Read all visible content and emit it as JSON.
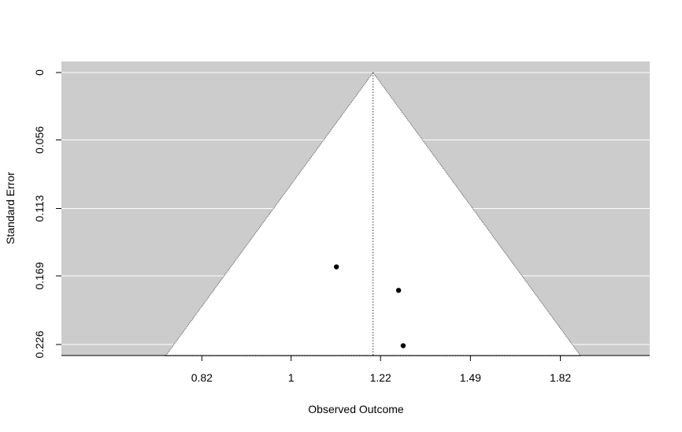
{
  "chart_data": {
    "type": "scatter",
    "subtype": "funnel",
    "title": "",
    "xlabel": "Observed Outcome",
    "ylabel": "Standard Error",
    "x_scale": "log",
    "x_ticks": [
      0.82,
      1,
      1.22,
      1.49,
      1.82
    ],
    "x_tick_labels": [
      "0.82",
      "1",
      "1.22",
      "1.49",
      "1.82"
    ],
    "y_ticks": [
      0,
      0.056,
      0.113,
      0.169,
      0.226
    ],
    "y_tick_labels": [
      "0",
      "0.056",
      "0.113",
      "0.169",
      "0.226"
    ],
    "y_inverted": true,
    "xlim": [
      0.6,
      2.22
    ],
    "ylim": [
      0,
      0.2355
    ],
    "summary_estimate": 1.2,
    "funnel_z": 1.96,
    "grid": "horizontal-white",
    "colors": {
      "panel_background": "#cccccc",
      "funnel_region": "#ffffff",
      "points": "#000000",
      "grid": "#ffffff"
    },
    "points": [
      {
        "x": 1.106,
        "y": 0.1615
      },
      {
        "x": 1.27,
        "y": 0.181
      },
      {
        "x": 1.283,
        "y": 0.227
      }
    ]
  }
}
